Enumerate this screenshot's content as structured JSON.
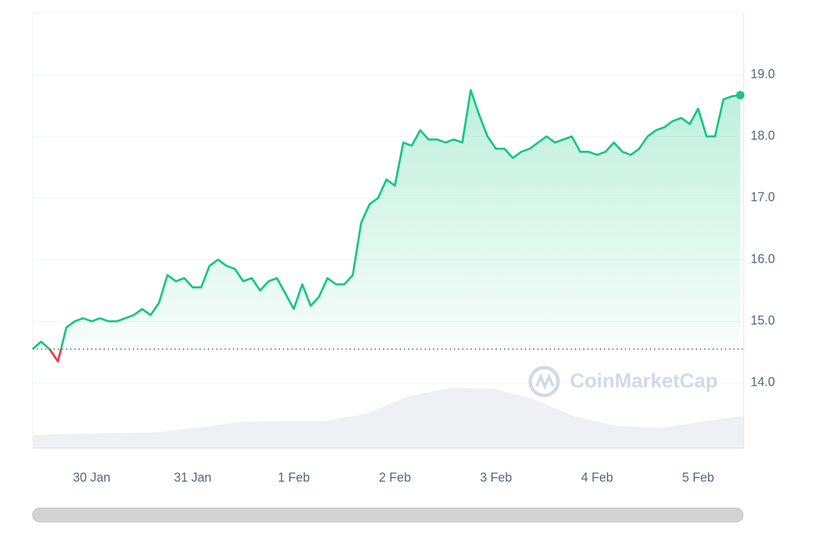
{
  "chart_data": {
    "type": "line",
    "watermark": "CoinMarketCap",
    "ylim": [
      12.94,
      20.01
    ],
    "yticks": [
      {
        "value": 14,
        "label": "14.0"
      },
      {
        "value": 15,
        "label": "15.0"
      },
      {
        "value": 16,
        "label": "16.0"
      },
      {
        "value": 17,
        "label": "17.0"
      },
      {
        "value": 18,
        "label": "18.0"
      },
      {
        "value": 19,
        "label": "19.0"
      }
    ],
    "xlim": [
      0,
      84.4
    ],
    "xticks": [
      {
        "value": 7,
        "label": "30 Jan"
      },
      {
        "value": 19,
        "label": "31 Jan"
      },
      {
        "value": 31,
        "label": "1 Feb"
      },
      {
        "value": 43,
        "label": "2 Feb"
      },
      {
        "value": 55,
        "label": "3 Feb"
      },
      {
        "value": 67,
        "label": "4 Feb"
      },
      {
        "value": 79,
        "label": "5 Feb"
      }
    ],
    "baseline": 14.55,
    "grid": true,
    "up_color": "#16c784",
    "down_color": "#ea3943",
    "values": [
      14.55,
      14.67,
      14.55,
      14.35,
      14.9,
      15.0,
      15.05,
      15.0,
      15.05,
      15.0,
      15.0,
      15.05,
      15.1,
      15.2,
      15.1,
      15.3,
      15.75,
      15.65,
      15.7,
      15.55,
      15.55,
      15.9,
      16.0,
      15.9,
      15.85,
      15.65,
      15.7,
      15.5,
      15.65,
      15.7,
      15.45,
      15.2,
      15.6,
      15.25,
      15.4,
      15.7,
      15.6,
      15.6,
      15.75,
      16.6,
      16.9,
      17.0,
      17.3,
      17.2,
      17.9,
      17.85,
      18.1,
      17.95,
      17.95,
      17.9,
      17.95,
      17.9,
      18.75,
      18.35,
      18.0,
      17.8,
      17.8,
      17.65,
      17.75,
      17.8,
      17.9,
      18.0,
      17.9,
      17.95,
      18.0,
      17.75,
      17.75,
      17.7,
      17.75,
      17.9,
      17.75,
      17.7,
      17.8,
      18.0,
      18.1,
      18.15,
      18.25,
      18.3,
      18.2,
      18.45,
      18.0,
      18.0,
      18.6,
      18.65,
      18.67
    ],
    "volume": {
      "color": "#eef0f3",
      "ylim": [
        0,
        100
      ],
      "values": [
        9.5,
        10.5,
        11,
        11.5,
        15,
        19,
        19.5,
        19.5,
        25,
        37.5,
        43.5,
        43,
        35,
        22.5,
        16,
        14.5,
        19,
        23.5
      ]
    }
  }
}
